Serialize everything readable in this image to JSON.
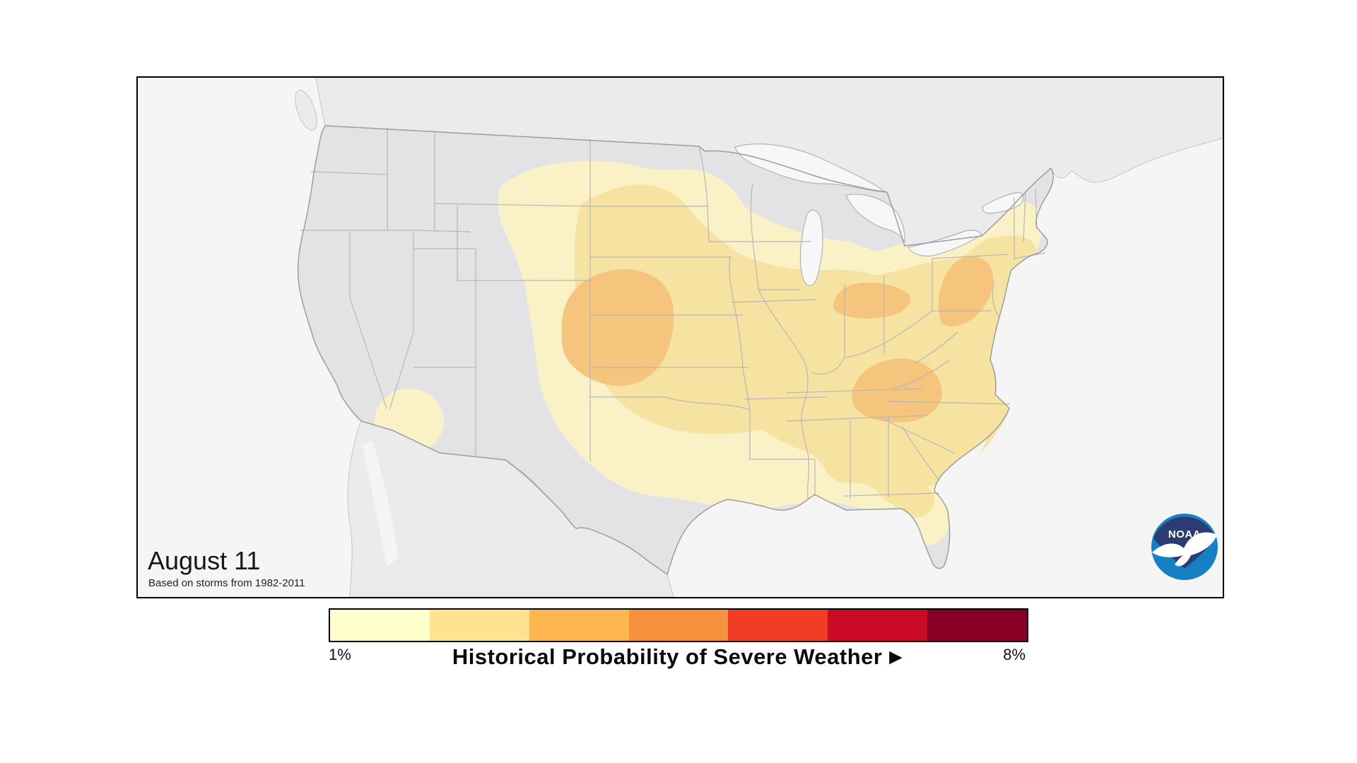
{
  "map_panel": {
    "date_label": "August 11",
    "source_note": "Based on storms from 1982-2011",
    "ocean_color": "#f5f5f6",
    "neighbor_land_color": "#ebebec",
    "us_land_color": "#e3e3e5",
    "lake_color": "#f7f7f8",
    "border_color": "#a9abad"
  },
  "logo": {
    "label": "NOAA",
    "dark_blue": "#2a3c72",
    "light_blue": "#1580c4"
  },
  "legend": {
    "title": "Historical Probability of Severe Weather",
    "arrow": "▶",
    "min_label": "1%",
    "max_label": "8%",
    "colors": [
      "#ffffcc",
      "#fee391",
      "#fdb54f",
      "#f8913d",
      "#f23d26",
      "#cb0a25",
      "#870025"
    ]
  },
  "map_levels": [
    {
      "approx_probability": "1%",
      "color": "#faf2c6"
    },
    {
      "approx_probability": "2%",
      "color": "#f7e3a1"
    },
    {
      "approx_probability": "3%+",
      "color": "#f6c57d"
    }
  ],
  "chart_data": {
    "type": "contour-map",
    "title": "Historical Probability of Severe Weather",
    "date": "August 11",
    "source_note": "Based on storms from 1982-2011",
    "scale": {
      "min_label": "1%",
      "max_label": "8%",
      "colors": [
        "#ffffcc",
        "#fee391",
        "#fdb54f",
        "#f8913d",
        "#f23d26",
        "#cb0a25",
        "#870025"
      ]
    },
    "shading_levels": [
      {
        "approx_probability": "1%",
        "color": "#faf2c6"
      },
      {
        "approx_probability": "2%",
        "color": "#f7e3a1"
      },
      {
        "approx_probability": "3%+",
        "color": "#f6c57d"
      }
    ],
    "shaded_regions": [
      {
        "name": "central-plains-nebraska-kansas",
        "peak_level": "3%+"
      },
      {
        "name": "ohio-valley",
        "peak_level": "3%+"
      },
      {
        "name": "mid-atlantic-nj-md",
        "peak_level": "3%+"
      },
      {
        "name": "carolinas",
        "peak_level": "3%+"
      },
      {
        "name": "plains-midwest-to-east-coast",
        "peak_level": "2%"
      },
      {
        "name": "western-arizona",
        "peak_level": "1%"
      },
      {
        "name": "north-florida",
        "peak_level": "2%"
      }
    ]
  }
}
